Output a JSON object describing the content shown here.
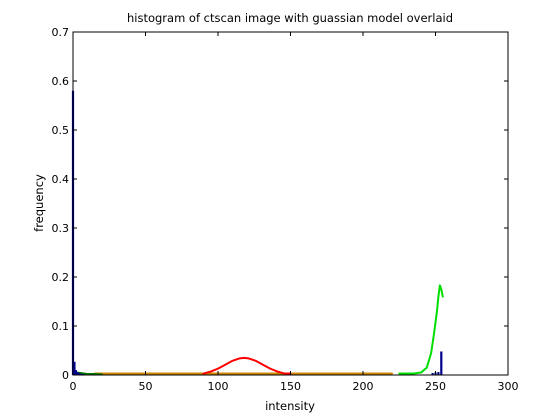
{
  "chart_data": {
    "type": "line",
    "title": "histogram of ctscan image with guassian model overlaid",
    "xlabel": "intensity",
    "ylabel": "frequency",
    "xlim": [
      0,
      300
    ],
    "ylim": [
      0,
      0.7
    ],
    "xticks": [
      "0",
      "50",
      "100",
      "150",
      "200",
      "250",
      "300"
    ],
    "yticks": [
      "0",
      "0.1",
      "0.2",
      "0.3",
      "0.4",
      "0.5",
      "0.6",
      "0.7"
    ],
    "grid": false,
    "legend": "none",
    "histogram": {
      "color": "#00008B",
      "bars": [
        {
          "x": 0,
          "y": 0.58
        },
        {
          "x": 1,
          "y": 0.027
        },
        {
          "x": 2,
          "y": 0.01
        },
        {
          "x": 3,
          "y": 0.006
        },
        {
          "x": 4,
          "y": 0.004
        },
        {
          "x": 5,
          "y": 0.003
        },
        {
          "x": 6,
          "y": 0.002
        },
        {
          "x": 7,
          "y": 0.002
        },
        {
          "x": 8,
          "y": 0.001
        },
        {
          "x": 9,
          "y": 0.001
        },
        {
          "x": 10,
          "y": 0.001
        },
        {
          "x": 248,
          "y": 0.004
        },
        {
          "x": 250,
          "y": 0.005
        },
        {
          "x": 252,
          "y": 0.006
        },
        {
          "x": 254,
          "y": 0.048
        }
      ]
    },
    "series": [
      {
        "color": "#FF0000",
        "values": [
          [
            90,
            0.003
          ],
          [
            95,
            0.007
          ],
          [
            100,
            0.013
          ],
          [
            105,
            0.021
          ],
          [
            110,
            0.029
          ],
          [
            115,
            0.034
          ],
          [
            118,
            0.035
          ],
          [
            121,
            0.034
          ],
          [
            126,
            0.029
          ],
          [
            131,
            0.021
          ],
          [
            136,
            0.013
          ],
          [
            141,
            0.007
          ],
          [
            146,
            0.003
          ],
          [
            150,
            0.003
          ]
        ]
      },
      {
        "color": "#00DD00",
        "values": [
          [
            225,
            0.003
          ],
          [
            235,
            0.003
          ],
          [
            240,
            0.005
          ],
          [
            244,
            0.015
          ],
          [
            247,
            0.045
          ],
          [
            249,
            0.085
          ],
          [
            251,
            0.13
          ],
          [
            252,
            0.16
          ],
          [
            253,
            0.183
          ],
          [
            254,
            0.175
          ],
          [
            255,
            0.16
          ]
        ]
      },
      {
        "color": "#CC8800",
        "values": [
          [
            15,
            0.003
          ],
          [
            90,
            0.003
          ],
          [
            150,
            0.003
          ],
          [
            220,
            0.003
          ]
        ]
      },
      {
        "color": "#007700",
        "values": [
          [
            0,
            0.006
          ],
          [
            5,
            0.004
          ],
          [
            10,
            0.002
          ],
          [
            15,
            0.002
          ],
          [
            20,
            0.001
          ]
        ]
      }
    ]
  }
}
